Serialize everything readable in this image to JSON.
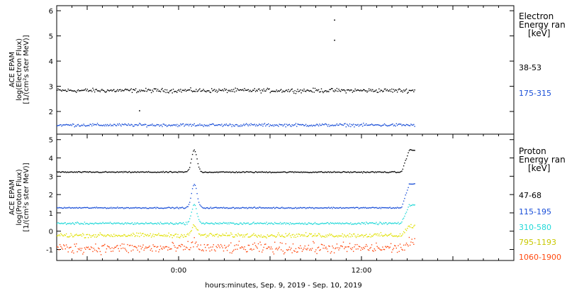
{
  "chart_data": [
    {
      "type": "scatter",
      "panel": "electron",
      "ylabel": [
        "ACE EPAM",
        "log(Electron Flux)",
        "[1/(cm²s ster MeV)]"
      ],
      "ylim": [
        1.1,
        6.2
      ],
      "yticks": [
        2,
        3,
        4,
        5,
        6
      ],
      "legend_title": [
        "Electron",
        "Energy ran",
        "[keV]"
      ],
      "series": [
        {
          "name": "38-53",
          "color": "#000000",
          "baseline": 2.85,
          "noise": 0.07
        },
        {
          "name": "175-315",
          "color": "#1a4fd8",
          "baseline": 1.48,
          "noise": 0.05
        }
      ],
      "outliers": [
        {
          "t": -2.6,
          "v": 2.05,
          "color": "#000000"
        },
        {
          "t": 10.2,
          "v": 5.65,
          "color": "#000000"
        },
        {
          "t": 10.2,
          "v": 4.85,
          "color": "#000000"
        }
      ]
    },
    {
      "type": "scatter",
      "panel": "proton",
      "ylabel": [
        "ACE EPAM",
        "log(Proton Flux)",
        "[1/(cm²s ster MeV)]"
      ],
      "ylim": [
        -1.6,
        5.3
      ],
      "yticks": [
        -1,
        0,
        1,
        2,
        3,
        4,
        5
      ],
      "legend_title": [
        "Proton",
        "Energy ran",
        "[keV]"
      ],
      "series": [
        {
          "name": "47-68",
          "color": "#000000",
          "baseline": 3.25,
          "noise": 0.03,
          "spike": 1.2
        },
        {
          "name": "115-195",
          "color": "#1a4fd8",
          "baseline": 1.3,
          "noise": 0.03,
          "spike": 1.3
        },
        {
          "name": "310-580",
          "color": "#20d8d8",
          "baseline": 0.45,
          "noise": 0.05,
          "spike": 1.0
        },
        {
          "name": "795-1193",
          "color": "#e0e000",
          "baseline": -0.2,
          "noise": 0.1,
          "spike": 0.5
        },
        {
          "name": "1060-1900",
          "color": "#ff4a10",
          "baseline": -0.9,
          "noise": 0.25,
          "spike": 0.3
        }
      ]
    }
  ],
  "x_axis": {
    "title": "hours:minutes, Sep.  9, 2019 - Sep. 10, 2019",
    "range": [
      -8,
      22
    ],
    "ticks": [
      {
        "t": 0,
        "label": "0:00"
      },
      {
        "t": 12,
        "label": "12:00"
      }
    ],
    "data_end": 15.5
  }
}
